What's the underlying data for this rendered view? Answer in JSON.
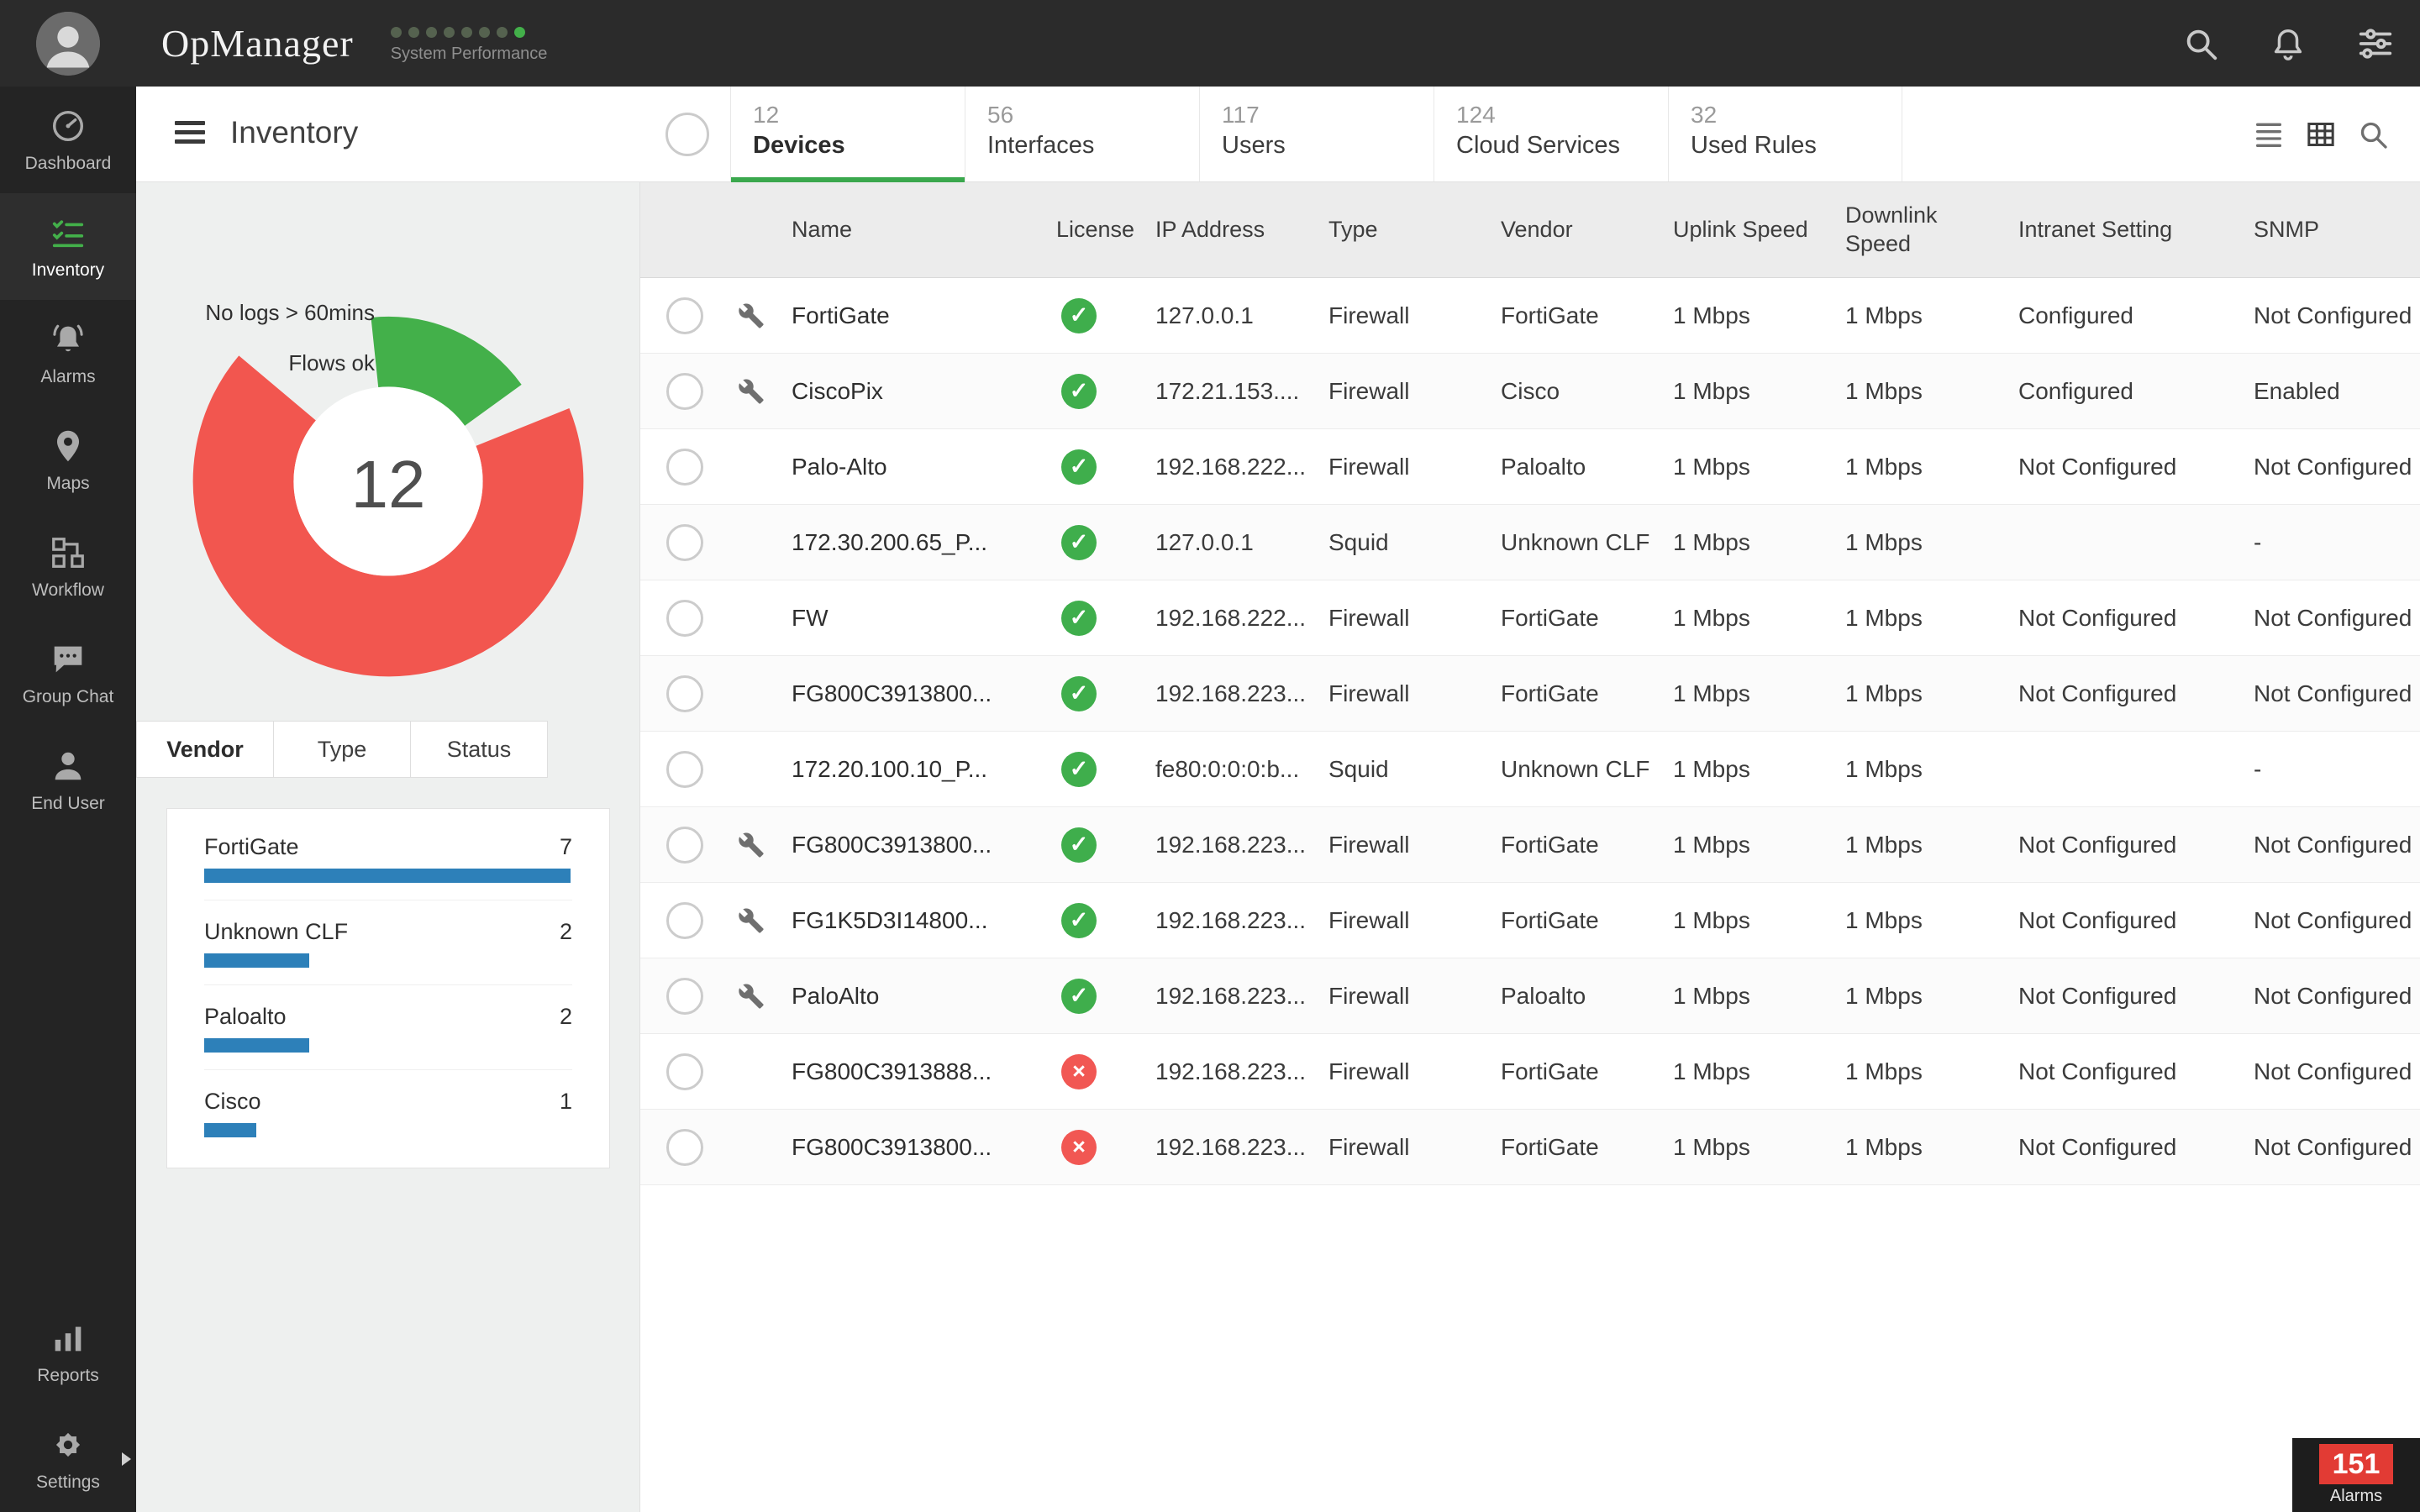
{
  "topbar": {
    "logo": "OpManager",
    "tagline": "System Performance",
    "dot_count": 8,
    "dot_color": "#55624f",
    "dot_active_color": "#43b04a"
  },
  "sidebar": {
    "items": [
      {
        "label": "Dashboard",
        "icon": "gauge",
        "active": false
      },
      {
        "label": "Inventory",
        "icon": "inventory",
        "active": true
      },
      {
        "label": "Alarms",
        "icon": "bell-alert",
        "active": false
      },
      {
        "label": "Maps",
        "icon": "pin",
        "active": false
      },
      {
        "label": "Workflow",
        "icon": "workflow",
        "active": false
      },
      {
        "label": "Group Chat",
        "icon": "chat",
        "active": false
      },
      {
        "label": "End User",
        "icon": "user",
        "active": false
      }
    ],
    "bottom_items": [
      {
        "label": "Reports",
        "icon": "reports",
        "active": false
      },
      {
        "label": "Settings",
        "icon": "gear",
        "active": false,
        "expandable": true
      }
    ],
    "alarm_badge": {
      "count": "151",
      "label": "Alarms",
      "color": "#e23b34"
    }
  },
  "header": {
    "title": "Inventory"
  },
  "tabs": [
    {
      "count": "12",
      "label": "Devices",
      "active": true
    },
    {
      "count": "56",
      "label": "Interfaces",
      "active": false
    },
    {
      "count": "117",
      "label": "Users",
      "active": false
    },
    {
      "count": "124",
      "label": "Cloud Services",
      "active": false
    },
    {
      "count": "32",
      "label": "Used Rules",
      "active": false
    }
  ],
  "panel": {
    "filter_tabs": [
      {
        "label": "Vendor",
        "active": true
      },
      {
        "label": "Type",
        "active": false
      },
      {
        "label": "Status",
        "active": false
      }
    ]
  },
  "chart_data": [
    {
      "type": "pie",
      "subtype": "donut",
      "center_label": "12",
      "legend_position": "left",
      "segments": [
        {
          "label": "No logs > 60mins",
          "color": "#f2564f",
          "start_deg": 68,
          "sweep_deg": 242,
          "thickness": 66
        },
        {
          "label": "Flows ok",
          "color": "#43b04a",
          "start_deg": 354,
          "sweep_deg": 60,
          "thickness": 46
        }
      ]
    },
    {
      "type": "bar",
      "orientation": "horizontal",
      "title": "Vendor",
      "categories": [
        "FortiGate",
        "Unknown CLF",
        "Paloalto",
        "Cisco"
      ],
      "values": [
        7,
        2,
        2,
        1
      ],
      "bar_color": "#2d80b9",
      "xlim": [
        0,
        7
      ]
    }
  ],
  "table": {
    "columns": [
      "Name",
      "License",
      "IP Address",
      "Type",
      "Vendor",
      "Uplink Speed",
      "Downlink Speed",
      "Intranet Setting",
      "SNMP"
    ],
    "rows": [
      {
        "wrench": true,
        "name": "FortiGate",
        "license": "ok",
        "ip": "127.0.0.1",
        "type": "Firewall",
        "vendor": "FortiGate",
        "uplink": "1 Mbps",
        "downlink": "1 Mbps",
        "intranet": "Configured",
        "snmp": "Not Configured"
      },
      {
        "wrench": true,
        "name": "CiscoPix",
        "license": "ok",
        "ip": "172.21.153....",
        "type": "Firewall",
        "vendor": "Cisco",
        "uplink": "1 Mbps",
        "downlink": "1 Mbps",
        "intranet": "Configured",
        "snmp": "Enabled"
      },
      {
        "wrench": false,
        "name": "Palo-Alto",
        "license": "ok",
        "ip": "192.168.222...",
        "type": "Firewall",
        "vendor": "Paloalto",
        "uplink": "1 Mbps",
        "downlink": "1 Mbps",
        "intranet": "Not Configured",
        "snmp": "Not Configured"
      },
      {
        "wrench": false,
        "name": "172.30.200.65_P...",
        "license": "ok",
        "ip": "127.0.0.1",
        "type": "Squid",
        "vendor": "Unknown CLF",
        "uplink": "1 Mbps",
        "downlink": "1 Mbps",
        "intranet": "",
        "snmp": "-"
      },
      {
        "wrench": false,
        "name": "FW",
        "license": "ok",
        "ip": "192.168.222...",
        "type": "Firewall",
        "vendor": "FortiGate",
        "uplink": "1 Mbps",
        "downlink": "1 Mbps",
        "intranet": "Not Configured",
        "snmp": "Not Configured"
      },
      {
        "wrench": false,
        "name": "FG800C3913800...",
        "license": "ok",
        "ip": "192.168.223...",
        "type": "Firewall",
        "vendor": "FortiGate",
        "uplink": "1 Mbps",
        "downlink": "1 Mbps",
        "intranet": "Not Configured",
        "snmp": "Not Configured"
      },
      {
        "wrench": false,
        "name": "172.20.100.10_P...",
        "license": "ok",
        "ip": "fe80:0:0:0:b...",
        "type": "Squid",
        "vendor": "Unknown CLF",
        "uplink": "1 Mbps",
        "downlink": "1 Mbps",
        "intranet": "",
        "snmp": "-"
      },
      {
        "wrench": true,
        "name": "FG800C3913800...",
        "license": "ok",
        "ip": "192.168.223...",
        "type": "Firewall",
        "vendor": "FortiGate",
        "uplink": "1 Mbps",
        "downlink": "1 Mbps",
        "intranet": "Not Configured",
        "snmp": "Not Configured"
      },
      {
        "wrench": true,
        "name": "FG1K5D3I14800...",
        "license": "ok",
        "ip": "192.168.223...",
        "type": "Firewall",
        "vendor": "FortiGate",
        "uplink": "1 Mbps",
        "downlink": "1 Mbps",
        "intranet": "Not Configured",
        "snmp": "Not Configured"
      },
      {
        "wrench": true,
        "name": "PaloAlto",
        "license": "ok",
        "ip": "192.168.223...",
        "type": "Firewall",
        "vendor": "Paloalto",
        "uplink": "1 Mbps",
        "downlink": "1 Mbps",
        "intranet": "Not Configured",
        "snmp": "Not Configured"
      },
      {
        "wrench": false,
        "name": "FG800C3913888...",
        "license": "error",
        "ip": "192.168.223...",
        "type": "Firewall",
        "vendor": "FortiGate",
        "uplink": "1 Mbps",
        "downlink": "1 Mbps",
        "intranet": "Not Configured",
        "snmp": "Not Configured"
      },
      {
        "wrench": false,
        "name": "FG800C3913800...",
        "license": "error",
        "ip": "192.168.223...",
        "type": "Firewall",
        "vendor": "FortiGate",
        "uplink": "1 Mbps",
        "downlink": "1 Mbps",
        "intranet": "Not Configured",
        "snmp": "Not Configured"
      }
    ]
  }
}
